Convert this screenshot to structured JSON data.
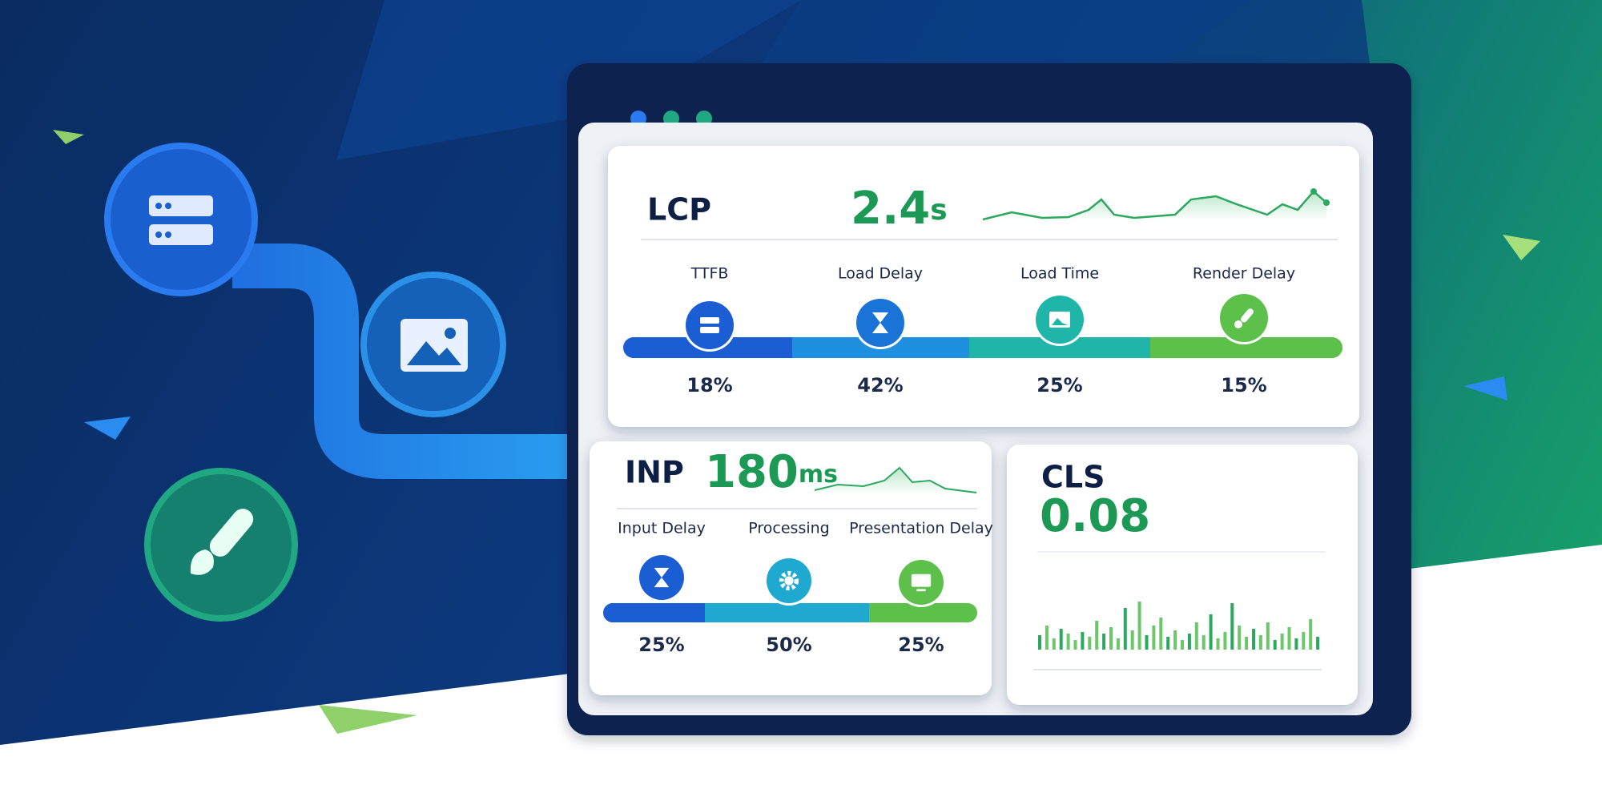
{
  "lcp": {
    "title": "LCP",
    "value": "2.4",
    "unit": "s",
    "segments": [
      {
        "label": "TTFB",
        "share": "18%"
      },
      {
        "label": "Load Delay",
        "share": "42%"
      },
      {
        "label": "Load Time",
        "share": "25%"
      },
      {
        "label": "Render Delay",
        "share": "15%"
      }
    ]
  },
  "inp": {
    "title": "INP",
    "value": "180",
    "unit": "ms",
    "segments": [
      {
        "label": "Input Delay",
        "share": "25%"
      },
      {
        "label": "Processing",
        "share": "50%"
      },
      {
        "label": "Presentation Delay",
        "share": "25%"
      }
    ]
  },
  "cls": {
    "title": "CLS",
    "value": "0.08"
  }
}
